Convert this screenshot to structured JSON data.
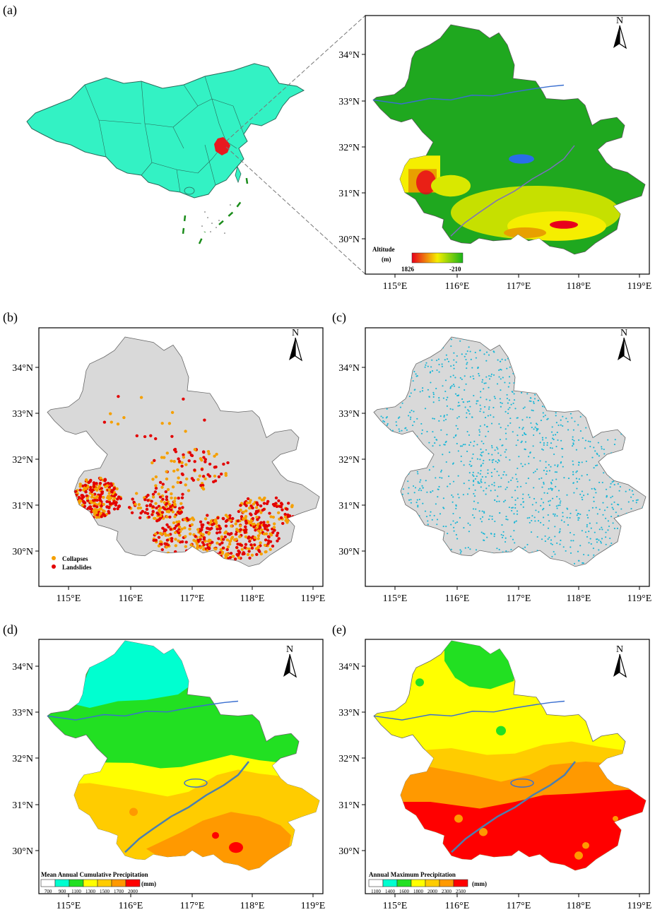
{
  "panels": {
    "a": {
      "label": "(a)"
    },
    "b": {
      "label": "(b)"
    },
    "c": {
      "label": "(c)"
    },
    "d": {
      "label": "(d)"
    },
    "e": {
      "label": "(e)"
    }
  },
  "north_label": "N",
  "axis": {
    "lat_ticks": [
      "34°N",
      "33°N",
      "32°N",
      "31°N",
      "30°N"
    ],
    "lon_ticks": [
      "115°E",
      "116°E",
      "117°E",
      "118°E",
      "119°E"
    ]
  },
  "legend_a": {
    "title": "Altitude",
    "unit": "(m)",
    "max": "1826",
    "min": "-210",
    "colors": {
      "high": "#e8001c",
      "mid": "#f5ee00",
      "low": "#19b419"
    }
  },
  "legend_b": {
    "items": [
      {
        "label": "Collapses",
        "color": "#f5a000"
      },
      {
        "label": "Landslides",
        "color": "#e30000"
      }
    ]
  },
  "legend_d": {
    "title": "Mean Annual Cumulative Precipitation",
    "unit": "(mm)",
    "breaks": [
      "700",
      "900",
      "1100",
      "1300",
      "1500",
      "1700",
      "2000"
    ],
    "colors": [
      "#ffffff",
      "#00ffd0",
      "#22e022",
      "#ffff00",
      "#ffcc00",
      "#ff9900",
      "#ff0000"
    ]
  },
  "legend_e": {
    "title": "Annual Maximum Precipitation",
    "unit": "(mm)",
    "breaks": [
      "1100",
      "1400",
      "1600",
      "1800",
      "2000",
      "2300",
      "2500"
    ],
    "colors": [
      "#ffffff",
      "#00ffd0",
      "#22e022",
      "#ffff00",
      "#ffcc00",
      "#ff9900",
      "#ff0000"
    ]
  },
  "colors": {
    "china_fill": "#33f2c4",
    "study_area": "#e8191f",
    "dem_green": "#1fa81f",
    "river": "#3a6fd0",
    "lake": "#2a6ee8",
    "grey_fill": "#d9d9d9",
    "station": "#19b6d6",
    "collapse": "#f5a000",
    "landslide": "#e30000",
    "cyan": "#00ffd0",
    "green": "#22e022",
    "yellow": "#ffff00",
    "gold": "#ffcc00",
    "orange": "#ff9900",
    "red": "#ff0000"
  }
}
